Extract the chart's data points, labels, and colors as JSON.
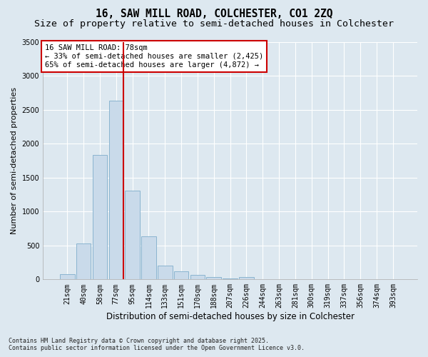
{
  "title1": "16, SAW MILL ROAD, COLCHESTER, CO1 2ZQ",
  "title2": "Size of property relative to semi-detached houses in Colchester",
  "xlabel": "Distribution of semi-detached houses by size in Colchester",
  "ylabel": "Number of semi-detached properties",
  "categories": [
    "21sqm",
    "40sqm",
    "58sqm",
    "77sqm",
    "95sqm",
    "114sqm",
    "133sqm",
    "151sqm",
    "170sqm",
    "188sqm",
    "207sqm",
    "226sqm",
    "244sqm",
    "263sqm",
    "281sqm",
    "300sqm",
    "319sqm",
    "337sqm",
    "356sqm",
    "374sqm",
    "393sqm"
  ],
  "values": [
    80,
    530,
    1840,
    2640,
    1310,
    640,
    200,
    115,
    65,
    35,
    10,
    35,
    5,
    0,
    0,
    0,
    0,
    0,
    0,
    0,
    0
  ],
  "bar_color": "#c9daea",
  "bar_edge_color": "#8ab4d0",
  "vline_color": "#cc0000",
  "vline_pos": 3.45,
  "ylim": [
    0,
    3500
  ],
  "yticks": [
    0,
    500,
    1000,
    1500,
    2000,
    2500,
    3000,
    3500
  ],
  "annotation_title": "16 SAW MILL ROAD: 78sqm",
  "annotation_line1": "← 33% of semi-detached houses are smaller (2,425)",
  "annotation_line2": "65% of semi-detached houses are larger (4,872) →",
  "annotation_box_color": "#ffffff",
  "annotation_box_edge": "#cc0000",
  "footnote1": "Contains HM Land Registry data © Crown copyright and database right 2025.",
  "footnote2": "Contains public sector information licensed under the Open Government Licence v3.0.",
  "bg_color": "#dde8f0",
  "plot_bg_color": "#dde8f0",
  "grid_color": "#ffffff",
  "title_fontsize": 10.5,
  "subtitle_fontsize": 9.5,
  "tick_fontsize": 7,
  "ylabel_fontsize": 8,
  "xlabel_fontsize": 8.5,
  "footnote_fontsize": 6,
  "annot_fontsize": 7.5
}
